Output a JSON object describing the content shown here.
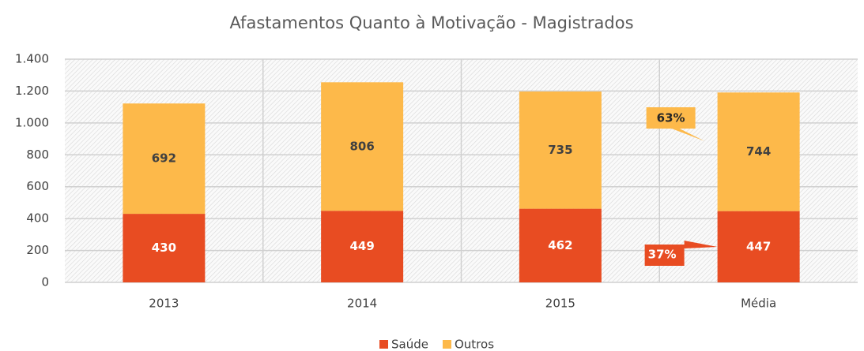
{
  "chart_data": {
    "type": "stacked_bar",
    "title": "Afastamentos Quanto à Motivação - Magistrados",
    "categories": [
      "2013",
      "2014",
      "2015",
      "Média"
    ],
    "series": [
      {
        "name": "Saúde",
        "color": "#e84c22",
        "values": [
          430,
          449,
          462,
          447
        ]
      },
      {
        "name": "Outros",
        "color": "#fdb94a",
        "values": [
          692,
          806,
          735,
          744
        ]
      }
    ],
    "ylim": [
      0,
      1400
    ],
    "yticks": [
      0,
      200,
      400,
      600,
      800,
      {
        "value": 1000,
        "label": "1.000"
      },
      {
        "value": 1200,
        "label": "1.200"
      },
      {
        "value": 1400,
        "label": "1.400"
      }
    ],
    "annotations": [
      "63%",
      "37%"
    ],
    "grid": true,
    "legend": "bottom"
  }
}
